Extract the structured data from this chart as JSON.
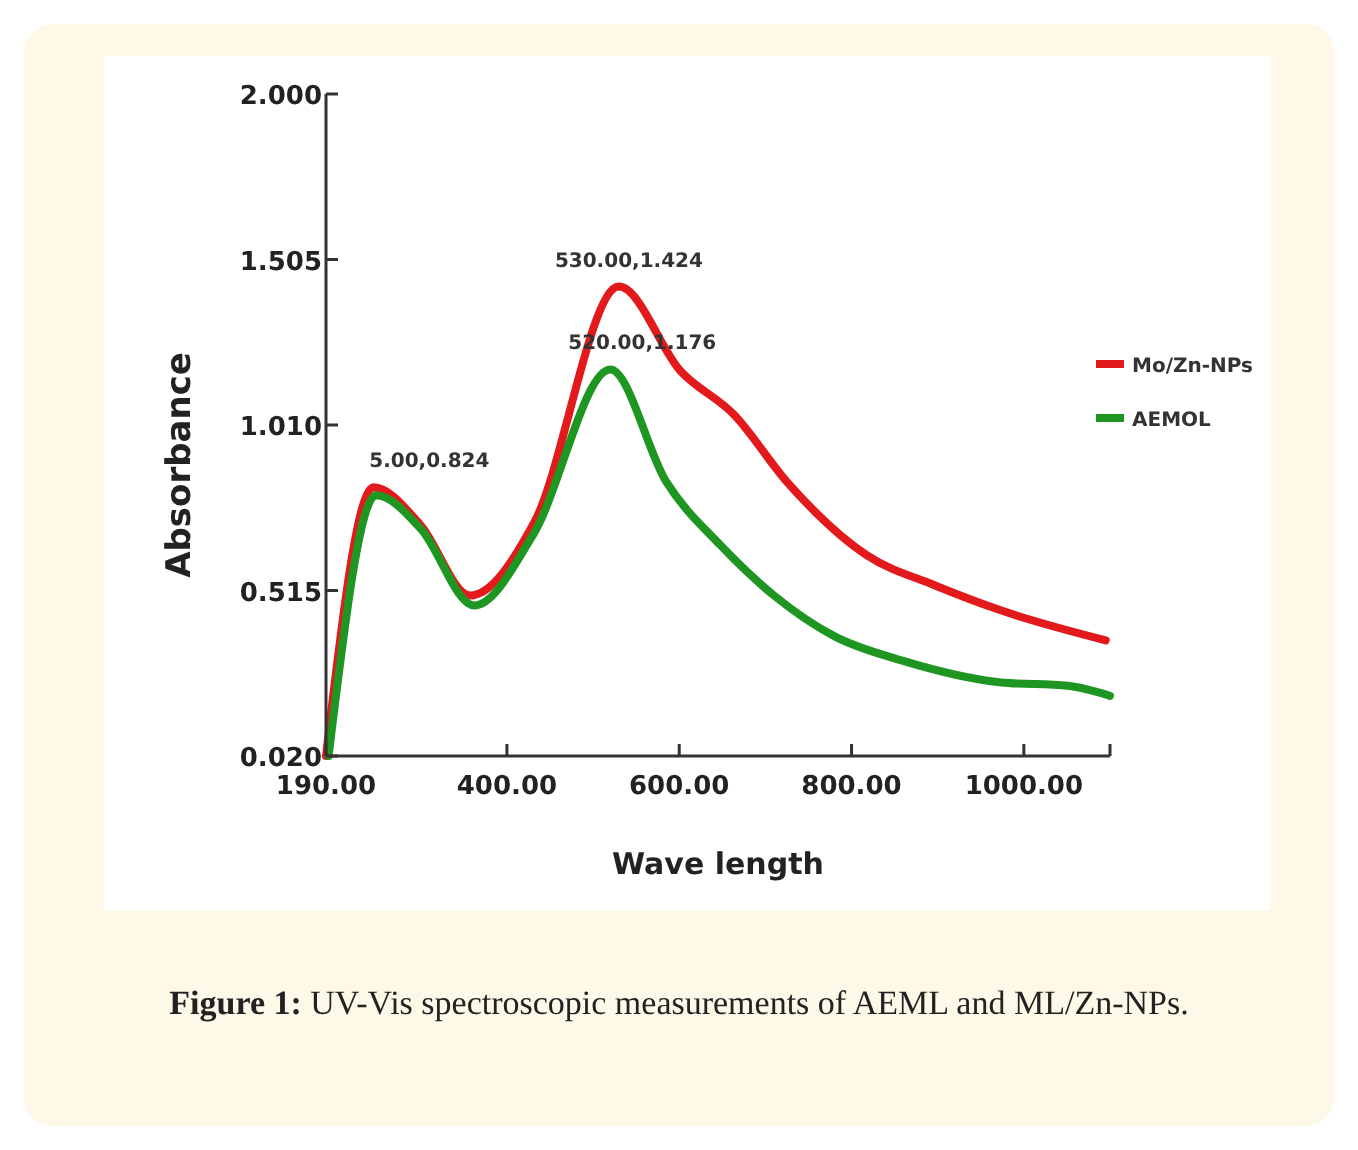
{
  "chart_data": {
    "type": "line",
    "xlabel": "Wave length",
    "ylabel": "Absorbance",
    "xlim": [
      190,
      1100
    ],
    "xticks": [
      {
        "value": 190,
        "label": "190.00"
      },
      {
        "value": 400,
        "label": "400.00"
      },
      {
        "value": 600,
        "label": "600.00"
      },
      {
        "value": 800,
        "label": "800.00"
      },
      {
        "value": 1000,
        "label": "1000.00"
      },
      {
        "value": 1100,
        "label": null
      }
    ],
    "ylim": [
      0.02,
      2.0
    ],
    "yticks": [
      {
        "value": 0.02,
        "label": "0.020"
      },
      {
        "value": 0.515,
        "label": "0.515"
      },
      {
        "value": 1.01,
        "label": "1.010"
      },
      {
        "value": 1.505,
        "label": "1.505"
      },
      {
        "value": 2.0,
        "label": "2.000"
      }
    ],
    "grid": false,
    "legend": "right",
    "marker": "none",
    "line_style": "solid",
    "series": [
      {
        "name": "Mo/Zn-NPs",
        "color": "#e31a1c",
        "x": [
          190,
          245,
          300,
          357,
          432,
          530,
          602,
          664,
          725,
          818,
          897,
          974,
          1095
        ],
        "values": [
          0.02,
          0.824,
          0.71,
          0.5,
          0.72,
          1.424,
          1.17,
          1.04,
          0.84,
          0.62,
          0.53,
          0.455,
          0.366
        ]
      },
      {
        "name": "AEMOL",
        "color": "#1e9621",
        "x": [
          193,
          248,
          300,
          362,
          430,
          520,
          585,
          648,
          710,
          781,
          858,
          974,
          1051,
          1100
        ],
        "values": [
          0.02,
          0.8,
          0.7,
          0.47,
          0.68,
          1.176,
          0.84,
          0.65,
          0.5,
          0.377,
          0.306,
          0.24,
          0.23,
          0.2
        ]
      }
    ],
    "annotations": [
      {
        "text": "5.00,0.824",
        "x": 245,
        "y": 0.824
      },
      {
        "text": "530.00,1.424",
        "x": 530,
        "y": 1.424
      },
      {
        "text": "520.00,1.176",
        "x": 520,
        "y": 1.176
      },
      "Figure 1: UV-Vis spectroscopic measurements of AEML and ML/Zn-NPs."
    ]
  }
}
